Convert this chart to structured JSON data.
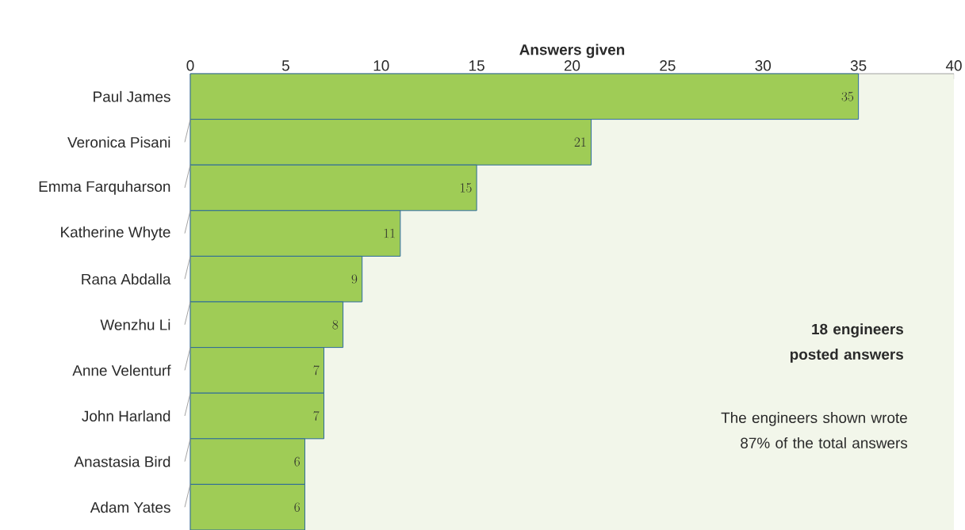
{
  "chart_data": {
    "type": "bar",
    "orientation": "horizontal",
    "xlabel": "Answers given",
    "categories": [
      "Paul James",
      "Veronica Pisani",
      "Emma Farquharson",
      "Katherine Whyte",
      "Rana Abdalla",
      "Wenzhu Li",
      "Anne Velenturf",
      "John Harland",
      "Anastasia Bird",
      "Adam Yates"
    ],
    "values": [
      35,
      21,
      15,
      11,
      9,
      8,
      7,
      7,
      6,
      6
    ],
    "color": "#9fcc56",
    "xlim": [
      0,
      40
    ],
    "xticks": [
      0,
      5,
      10,
      15,
      20,
      25,
      30,
      35,
      40
    ],
    "data_labels": true,
    "annotations": [
      "18 engineers posted answers",
      "The engineers shown wrote 87% of the total answers"
    ]
  }
}
